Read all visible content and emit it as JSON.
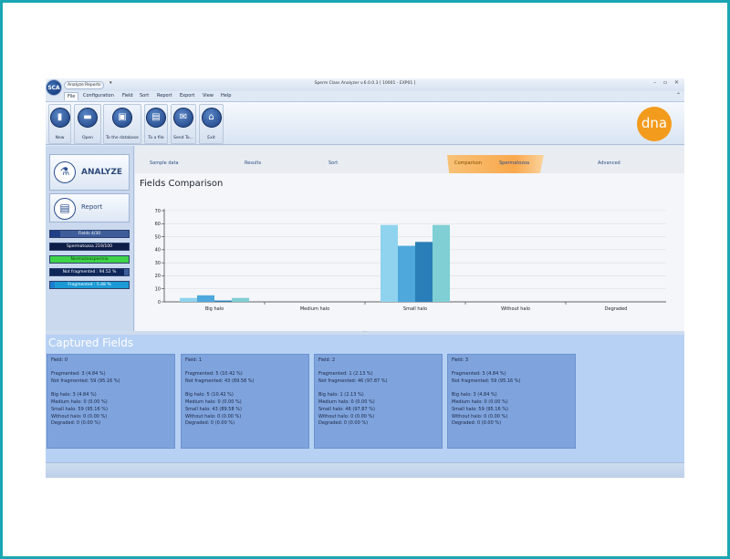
{
  "window": {
    "logo_text": "SCA",
    "qat_label": "Analyze  Reports",
    "qat_arrow": "▾",
    "title": "Sperm Class Analyzer v.6.0.0.3  [ 10001 - EXP01 ]",
    "controls": "–  ▫  ✕"
  },
  "menu": {
    "items": [
      "File",
      "Configuration",
      "Field",
      "Sort",
      "Report",
      "Export",
      "View",
      "Help"
    ],
    "collapse": "⌃"
  },
  "ribbon": {
    "buttons": [
      {
        "label": "New",
        "icon": "new-document-icon"
      },
      {
        "label": "Open",
        "icon": "open-folder-icon"
      },
      {
        "label": "To the database",
        "icon": "save-database-icon"
      },
      {
        "label": "To a file",
        "icon": "export-file-icon"
      },
      {
        "label": "Send To...",
        "icon": "send-mail-icon"
      },
      {
        "label": "Exit",
        "icon": "home-exit-icon"
      }
    ],
    "brand": "dna"
  },
  "left_panel": {
    "analyze_label": "ANALYZE",
    "report_label": "Report",
    "status": [
      {
        "text": "Fields 4/30",
        "fill": 0.13,
        "color": "#1f3f86"
      },
      {
        "text": "Spermatozoa 219/100",
        "fill": 1.0,
        "color": "#0e1d45"
      },
      {
        "text": "Normozoospermia",
        "fill": 1.0,
        "color": "#3fd34a"
      },
      {
        "text": "Not fragmented : 94.52 %",
        "fill": 0.9452,
        "color": "#0e2659"
      },
      {
        "text": "Fragmented : 5.48 %",
        "fill": 0.0548,
        "color": "#1c7fd0"
      }
    ]
  },
  "tabs": {
    "items": [
      "Sample data",
      "Results",
      "Sort",
      "Comparison",
      "Spermatozoa",
      "Advanced"
    ],
    "active": "Comparison"
  },
  "section_title": "Fields Comparison",
  "chart_data": {
    "type": "bar",
    "categories": [
      "Big halo",
      "Medium halo",
      "Small halo",
      "Without halo",
      "Degraded"
    ],
    "series": [
      {
        "values": [
          3,
          0,
          59,
          0,
          0
        ],
        "color": "#8fd3ee"
      },
      {
        "values": [
          5,
          0,
          43,
          0,
          0
        ],
        "color": "#4ea8dc"
      },
      {
        "values": [
          1,
          0,
          46,
          0,
          0
        ],
        "color": "#2a7fb8"
      },
      {
        "values": [
          3,
          0,
          59,
          0,
          0
        ],
        "color": "#7fcfd4"
      }
    ],
    "yticks": [
      0,
      10,
      20,
      30,
      40,
      50,
      60,
      70
    ],
    "ylim": [
      0,
      70
    ],
    "grid": true
  },
  "captured": {
    "title": "Captured Fields",
    "cards": [
      {
        "field": "Field: 0",
        "fragmented": "Fragmented: 3 (4.84 %)",
        "not_fragmented": "Not fragmented: 59 (95.16 %)",
        "big": "Big halo: 3 (4.84 %)",
        "medium": "Medium halo: 0 (0.00 %)",
        "small": "Small halo: 59 (95.16 %)",
        "without": "Without halo: 0 (0.00 %)",
        "degraded": "Degraded: 0 (0.00 %)"
      },
      {
        "field": "Field: 1",
        "fragmented": "Fragmented: 5 (10.42 %)",
        "not_fragmented": "Not fragmented: 43 (89.58 %)",
        "big": "Big halo: 5 (10.42 %)",
        "medium": "Medium halo: 0 (0.00 %)",
        "small": "Small halo: 43 (89.58 %)",
        "without": "Without halo: 0 (0.00 %)",
        "degraded": "Degraded: 0 (0.00 %)"
      },
      {
        "field": "Field: 2",
        "fragmented": "Fragmented: 1 (2.13 %)",
        "not_fragmented": "Not fragmented: 46 (97.87 %)",
        "big": "Big halo: 1 (2.13 %)",
        "medium": "Medium halo: 0 (0.00 %)",
        "small": "Small halo: 46 (97.87 %)",
        "without": "Without halo: 0 (0.00 %)",
        "degraded": "Degraded: 0 (0.00 %)"
      },
      {
        "field": "Field: 3",
        "fragmented": "Fragmented: 3 (4.84 %)",
        "not_fragmented": "Not fragmented: 59 (95.16 %)",
        "big": "Big halo: 3 (4.84 %)",
        "medium": "Medium halo: 0 (0.00 %)",
        "small": "Small halo: 59 (95.16 %)",
        "without": "Without halo: 0 (0.00 %)",
        "degraded": "Degraded: 0 (0.00 %)"
      }
    ]
  }
}
